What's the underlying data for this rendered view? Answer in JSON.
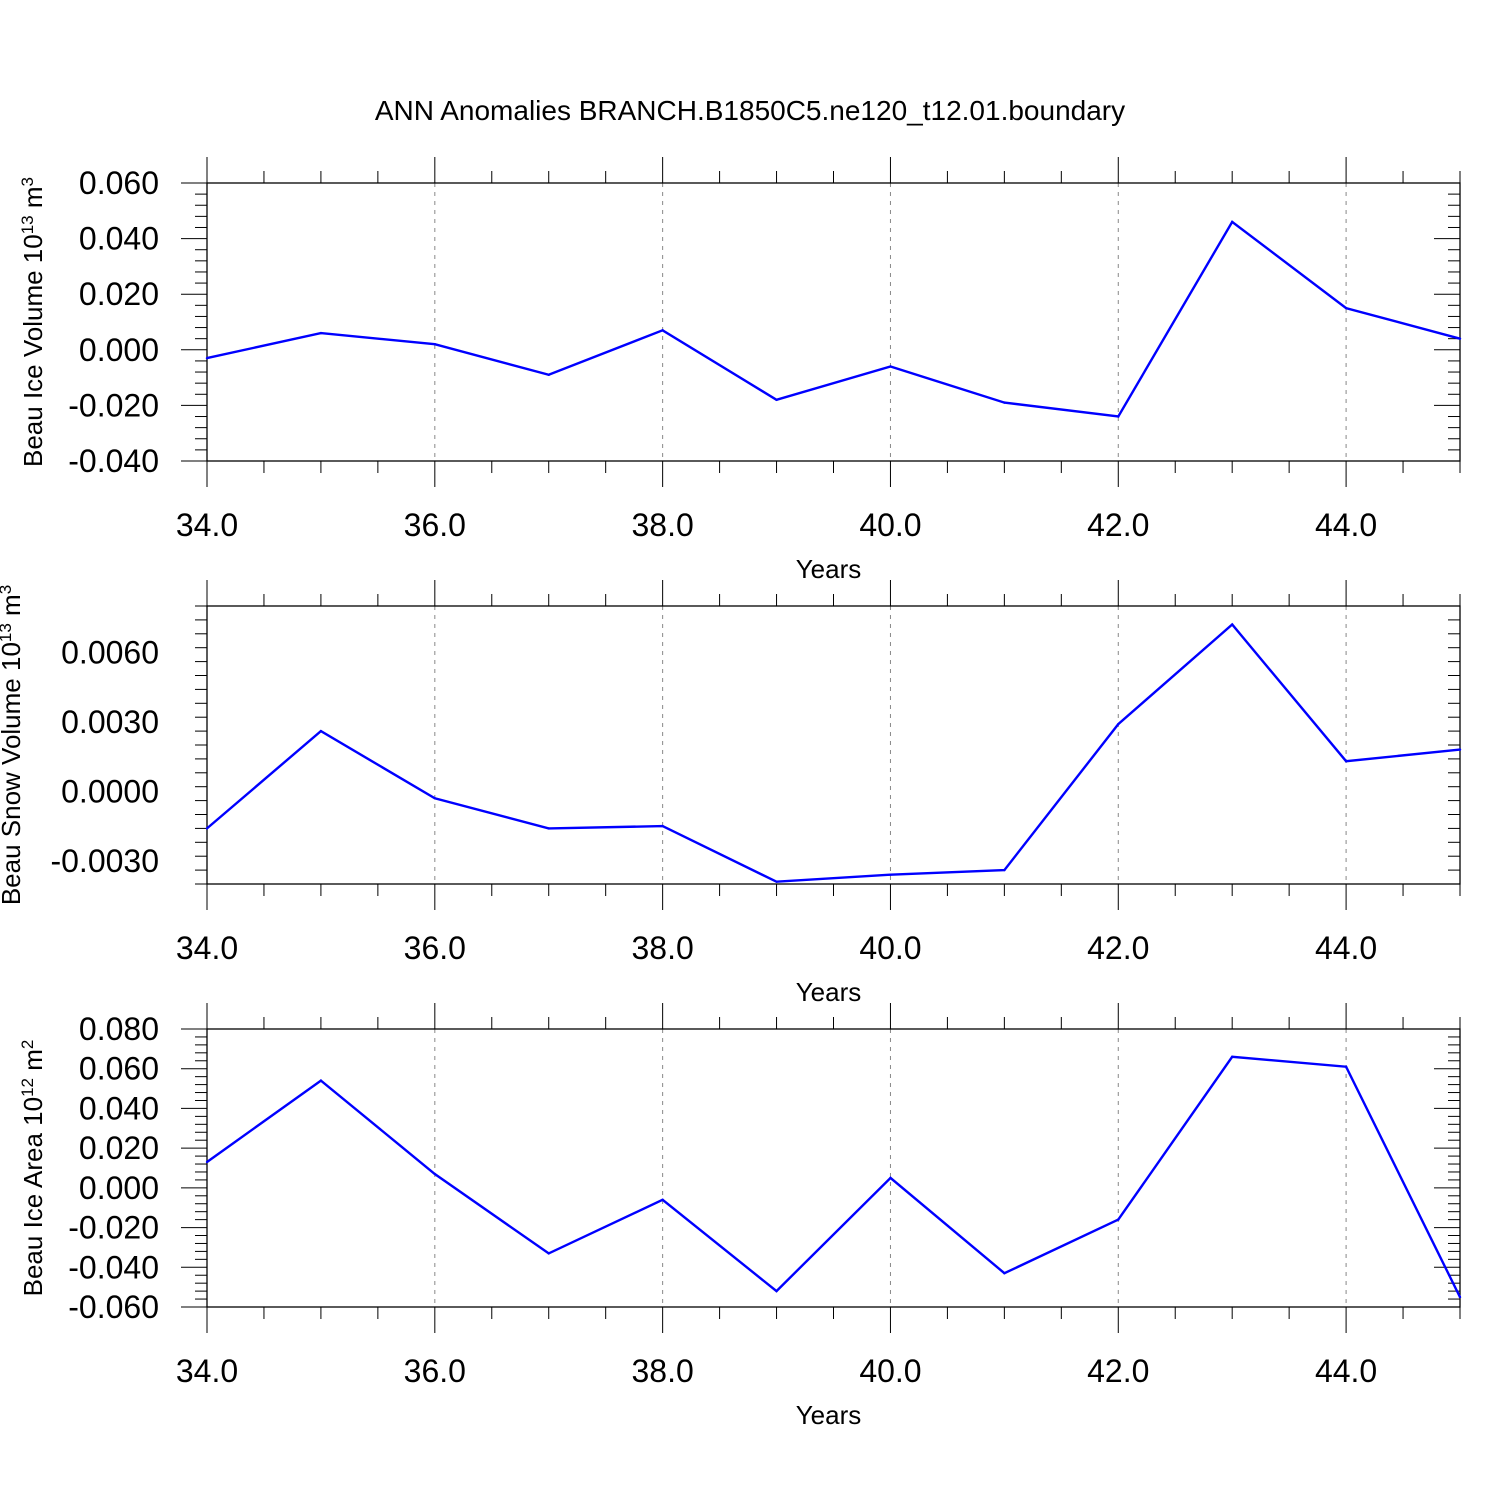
{
  "title": "ANN Anomalies BRANCH.B1850C5.ne120_t12.01.boundary",
  "line_color": "#0000ff",
  "chart_data": [
    {
      "type": "line",
      "title": "ANN Anomalies BRANCH.B1850C5.ne120_t12.01.boundary",
      "xlabel": "Years",
      "ylabel": {
        "main": "Beau Ice Volume 10",
        "exponent": "13",
        "unit": " m",
        "unit_exponent": "3"
      },
      "xlim": [
        34,
        45
      ],
      "ylim": [
        -0.04,
        0.06
      ],
      "x_ticks": [
        34,
        36,
        38,
        40,
        42,
        44
      ],
      "x_tick_labels": [
        "34.0",
        "36.0",
        "38.0",
        "40.0",
        "42.0",
        "44.0"
      ],
      "y_ticks": [
        -0.04,
        -0.02,
        0.0,
        0.02,
        0.04,
        0.06
      ],
      "y_tick_labels": [
        "-0.040",
        "-0.020",
        "0.000",
        "0.020",
        "0.040",
        "0.060"
      ],
      "grid": "vertical dashed at major x ticks",
      "x": [
        34,
        35,
        36,
        37,
        38,
        39,
        40,
        41,
        42,
        43,
        44,
        45
      ],
      "values": [
        -0.003,
        0.006,
        0.002,
        -0.009,
        0.007,
        -0.018,
        -0.006,
        -0.019,
        -0.024,
        0.046,
        0.015,
        0.004
      ]
    },
    {
      "type": "line",
      "xlabel": "Years",
      "ylabel": {
        "main": "Beau Snow Volume 10",
        "exponent": "13",
        "unit": " m",
        "unit_exponent": "3"
      },
      "xlim": [
        34,
        45
      ],
      "ylim": [
        -0.004,
        0.008
      ],
      "x_ticks": [
        34,
        36,
        38,
        40,
        42,
        44
      ],
      "x_tick_labels": [
        "34.0",
        "36.0",
        "38.0",
        "40.0",
        "42.0",
        "44.0"
      ],
      "y_ticks": [
        -0.003,
        0.0,
        0.003,
        0.006
      ],
      "y_tick_labels": [
        "-0.0030",
        "0.0000",
        "0.0030",
        "0.0060"
      ],
      "grid": "vertical dashed at major x ticks",
      "x": [
        34,
        35,
        36,
        37,
        38,
        39,
        40,
        41,
        42,
        43,
        44,
        45
      ],
      "values": [
        -0.0016,
        0.0026,
        -0.0003,
        -0.0016,
        -0.0015,
        -0.0039,
        -0.0036,
        -0.0034,
        0.0029,
        0.0072,
        0.0013,
        0.0018
      ]
    },
    {
      "type": "line",
      "xlabel": "Years",
      "ylabel": {
        "main": "Beau Ice Area 10",
        "exponent": "12",
        "unit": " m",
        "unit_exponent": "2"
      },
      "xlim": [
        34,
        45
      ],
      "ylim": [
        -0.06,
        0.08
      ],
      "x_ticks": [
        34,
        36,
        38,
        40,
        42,
        44
      ],
      "x_tick_labels": [
        "34.0",
        "36.0",
        "38.0",
        "40.0",
        "42.0",
        "44.0"
      ],
      "y_ticks": [
        -0.06,
        -0.04,
        -0.02,
        0.0,
        0.02,
        0.04,
        0.06,
        0.08
      ],
      "y_tick_labels": [
        "-0.060",
        "-0.040",
        "-0.020",
        "0.000",
        "0.020",
        "0.040",
        "0.060",
        "0.080"
      ],
      "grid": "vertical dashed at major x ticks",
      "x": [
        34,
        35,
        36,
        37,
        38,
        39,
        40,
        41,
        42,
        43,
        44,
        45
      ],
      "values": [
        0.013,
        0.054,
        0.007,
        -0.033,
        -0.006,
        -0.052,
        0.005,
        -0.043,
        -0.016,
        0.066,
        0.061,
        -0.055
      ]
    }
  ]
}
